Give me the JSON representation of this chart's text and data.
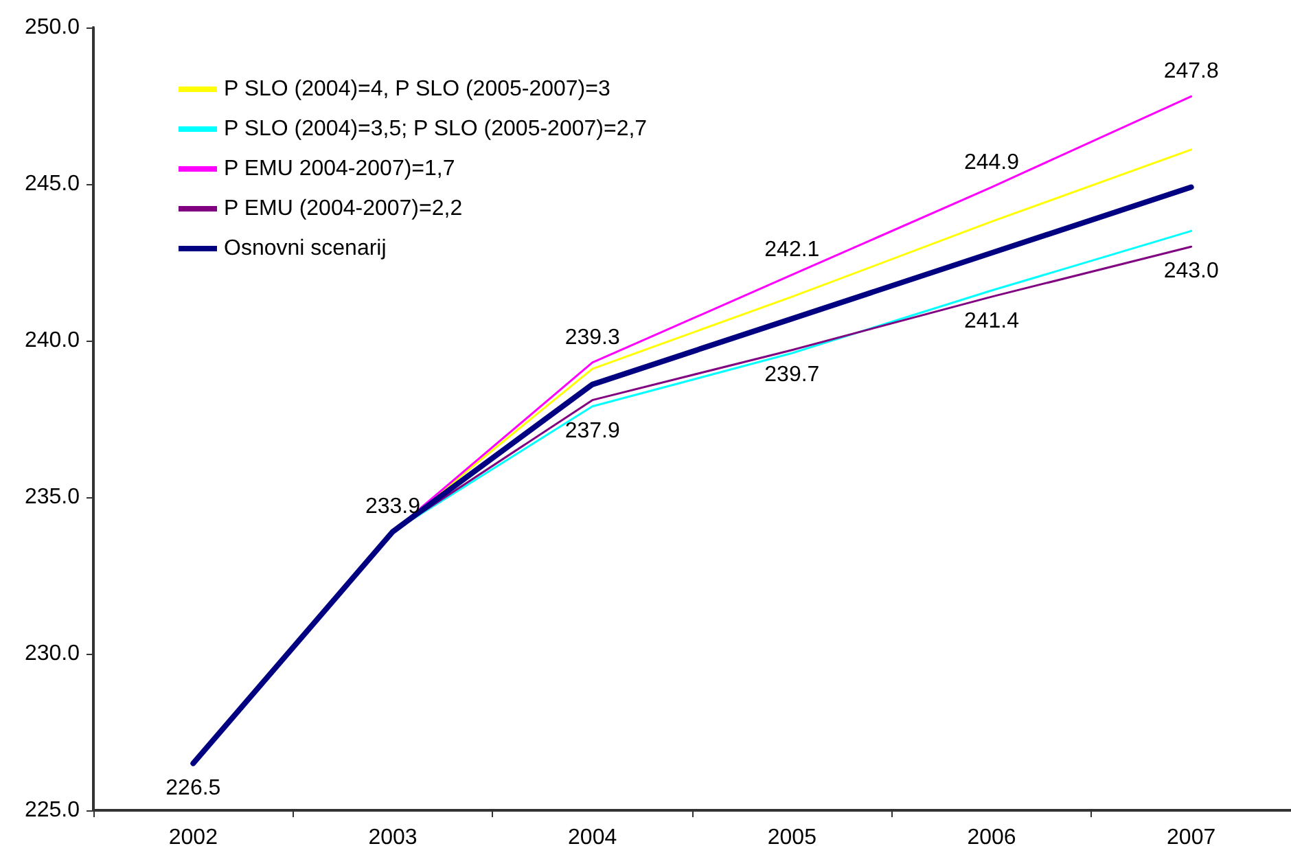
{
  "chart_data": {
    "type": "line",
    "categories": [
      "2002",
      "2003",
      "2004",
      "2005",
      "2006",
      "2007"
    ],
    "ylim": [
      225,
      250
    ],
    "yticks": [
      {
        "value": 225,
        "label": "225.0"
      },
      {
        "value": 230,
        "label": "230.0"
      },
      {
        "value": 235,
        "label": "235.0"
      },
      {
        "value": 240,
        "label": "240.0"
      },
      {
        "value": 245,
        "label": "245.0"
      },
      {
        "value": 250,
        "label": "250.0"
      }
    ],
    "grid": false,
    "legend": "top left",
    "marker": "none",
    "line_style": "solid",
    "series": [
      {
        "name": "P SLO (2004)=4, P SLO (2005-2007)=3",
        "color": "#ffff00",
        "values": [
          null,
          233.9,
          239.1,
          241.4,
          243.8,
          246.1
        ]
      },
      {
        "name": "P SLO (2004)=3,5; P SLO (2005-2007)=2,7",
        "color": "#00ffff",
        "values": [
          null,
          233.9,
          237.9,
          239.6,
          241.6,
          243.5
        ],
        "value_labels": [
          null,
          null,
          "237.9",
          null,
          null,
          null
        ]
      },
      {
        "name": "P EMU 2004-2007)=1,7",
        "color": "#ff00ff",
        "values": [
          null,
          233.9,
          239.3,
          242.1,
          244.9,
          247.8
        ],
        "value_labels": [
          null,
          null,
          "239.3",
          "242.1",
          "244.9",
          "247.8"
        ]
      },
      {
        "name": "P EMU (2004-2007)=2,2",
        "color": "#800080",
        "values": [
          null,
          233.9,
          238.1,
          239.7,
          241.4,
          243.0
        ],
        "value_labels": [
          null,
          null,
          null,
          "239.7",
          "241.4",
          "243.0"
        ]
      },
      {
        "name": "Osnovni scenarij",
        "color": "#000080",
        "values": [
          226.5,
          233.9,
          238.6,
          240.7,
          242.8,
          244.9
        ],
        "value_labels": [
          "226.5",
          "233.9",
          null,
          null,
          null,
          null
        ]
      }
    ]
  }
}
